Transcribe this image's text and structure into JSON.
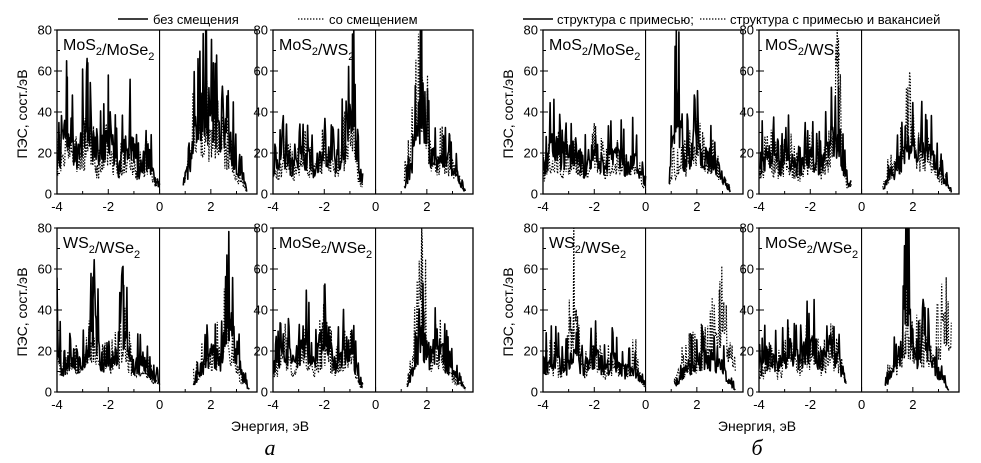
{
  "legend_left": {
    "solid": "без смещения",
    "dotted": "со смещением"
  },
  "legend_right": {
    "solid": "структура с примесью;",
    "dotted": "структура с примесью и вакансией"
  },
  "ylabel": "ПЭС, сост./эВ",
  "xlabel": "Энергия, эВ",
  "subfig_a": "а",
  "subfig_b": "б",
  "chart_data": [
    {
      "type": "line",
      "group": "а",
      "title": "MoS2/MoSe2",
      "xlim": [
        -4,
        3.8
      ],
      "ylim": [
        0,
        80
      ],
      "xticks": [
        "-4",
        "-2",
        "0",
        "2"
      ],
      "yticks": [
        "0",
        "20",
        "40",
        "60",
        "80"
      ],
      "gap": [
        0,
        0.9
      ],
      "series": [
        {
          "name": "без смещения",
          "style": "solid",
          "x": [
            -4.0,
            -3.6,
            -3.2,
            -2.8,
            -2.4,
            -2.0,
            -1.6,
            -1.2,
            -0.8,
            -0.4,
            -0.2,
            0.9,
            1.2,
            1.5,
            1.8,
            2.1,
            2.4,
            2.7,
            3.0,
            3.3,
            3.4
          ],
          "y": [
            24,
            57,
            30,
            64,
            25,
            58,
            22,
            48,
            20,
            34,
            10,
            8,
            26,
            66,
            80,
            64,
            45,
            48,
            26,
            12,
            2
          ]
        },
        {
          "name": "со смещением",
          "style": "dotted",
          "x": [
            -4.0,
            -3.6,
            -3.2,
            -2.8,
            -2.4,
            -2.0,
            -1.6,
            -1.2,
            -0.8,
            -0.4,
            -0.2,
            0.7,
            1.0,
            1.3,
            1.6,
            1.9,
            2.2,
            2.5,
            2.8,
            3.1,
            3.4
          ],
          "y": [
            18,
            40,
            22,
            36,
            18,
            32,
            18,
            28,
            16,
            24,
            8,
            4,
            20,
            40,
            46,
            42,
            38,
            36,
            24,
            12,
            2
          ]
        }
      ]
    },
    {
      "type": "line",
      "group": "а",
      "title": "MoS2/WS2",
      "xlim": [
        -4,
        3.8
      ],
      "ylim": [
        0,
        80
      ],
      "xticks": [
        "-4",
        "-2",
        "0",
        "2"
      ],
      "yticks": [
        "0",
        "20",
        "40",
        "60",
        "80"
      ],
      "gap": [
        -0.5,
        1.1
      ],
      "series": [
        {
          "name": "без смещения",
          "style": "solid",
          "x": [
            -4.0,
            -3.6,
            -3.2,
            -2.8,
            -2.4,
            -2.0,
            -1.6,
            -1.2,
            -0.9,
            -0.6,
            1.1,
            1.4,
            1.8,
            2.2,
            2.6,
            3.0,
            3.3,
            3.5
          ],
          "y": [
            20,
            30,
            24,
            34,
            22,
            38,
            24,
            40,
            78,
            10,
            6,
            22,
            80,
            28,
            30,
            24,
            10,
            2
          ]
        },
        {
          "name": "со смещением",
          "style": "dotted",
          "x": [
            -4.0,
            -3.6,
            -3.2,
            -2.8,
            -2.4,
            -2.0,
            -1.6,
            -1.2,
            -0.9,
            -0.6,
            0.8,
            1.2,
            1.8,
            2.2,
            2.6,
            3.0,
            3.3,
            3.5
          ],
          "y": [
            14,
            22,
            18,
            26,
            18,
            30,
            20,
            32,
            42,
            8,
            6,
            18,
            76,
            24,
            26,
            22,
            8,
            2
          ]
        }
      ]
    },
    {
      "type": "line",
      "group": "а",
      "title": "WS2/WSe2",
      "xlim": [
        -4,
        3.8
      ],
      "ylim": [
        0,
        80
      ],
      "xticks": [
        "-4",
        "-2",
        "0",
        "2"
      ],
      "yticks": [
        "0",
        "20",
        "40",
        "60",
        "80"
      ],
      "gap": [
        0,
        1.3
      ],
      "series": [
        {
          "name": "без смещения",
          "style": "solid",
          "x": [
            -4.0,
            -3.8,
            -3.4,
            -3.0,
            -2.6,
            -2.2,
            -1.8,
            -1.4,
            -1.0,
            -0.6,
            -0.2,
            1.3,
            1.6,
            2.0,
            2.4,
            2.7,
            3.0,
            3.3,
            3.5
          ],
          "y": [
            52,
            16,
            28,
            24,
            56,
            22,
            26,
            52,
            20,
            26,
            10,
            4,
            18,
            30,
            26,
            62,
            34,
            10,
            2
          ]
        },
        {
          "name": "со смещением",
          "style": "dotted",
          "x": [
            -4.0,
            -3.8,
            -3.4,
            -3.0,
            -2.6,
            -2.2,
            -1.8,
            -1.4,
            -1.0,
            -0.6,
            -0.2,
            1.1,
            1.5,
            1.9,
            2.3,
            2.6,
            2.9,
            3.2,
            3.5
          ],
          "y": [
            30,
            14,
            22,
            20,
            36,
            18,
            22,
            34,
            18,
            22,
            8,
            4,
            14,
            26,
            28,
            46,
            24,
            10,
            2
          ]
        }
      ]
    },
    {
      "type": "line",
      "group": "а",
      "title": "MoSe2/WSe2",
      "xlim": [
        -4,
        3.8
      ],
      "ylim": [
        0,
        80
      ],
      "xticks": [
        "-4",
        "-2",
        "0",
        "2"
      ],
      "yticks": [
        "0",
        "20",
        "40",
        "60",
        "80"
      ],
      "gap": [
        -0.5,
        1.2
      ],
      "series": [
        {
          "name": "без смещения",
          "style": "solid",
          "x": [
            -4.0,
            -3.6,
            -3.2,
            -2.8,
            -2.4,
            -2.0,
            -1.6,
            -1.2,
            -0.8,
            -0.6,
            1.2,
            1.5,
            1.8,
            2.1,
            2.4,
            2.7,
            3.0,
            3.3,
            3.5
          ],
          "y": [
            18,
            40,
            22,
            44,
            26,
            52,
            24,
            38,
            24,
            6,
            4,
            20,
            44,
            30,
            40,
            26,
            16,
            8,
            2
          ]
        },
        {
          "name": "со смещением",
          "style": "dotted",
          "x": [
            -4.0,
            -3.6,
            -3.2,
            -2.8,
            -2.4,
            -2.0,
            -1.6,
            -1.2,
            -0.8,
            -0.6,
            1.0,
            1.4,
            1.8,
            2.1,
            2.4,
            2.7,
            3.0,
            3.3,
            3.5
          ],
          "y": [
            14,
            28,
            18,
            30,
            20,
            34,
            20,
            30,
            20,
            4,
            2,
            16,
            80,
            26,
            32,
            22,
            12,
            6,
            2
          ]
        }
      ]
    },
    {
      "type": "line",
      "group": "б",
      "title": "MoS2/MoSe2",
      "xlim": [
        -4,
        3.8
      ],
      "ylim": [
        0,
        80
      ],
      "xticks": [
        "-4",
        "-2",
        "0",
        "2"
      ],
      "yticks": [
        "0",
        "20",
        "40",
        "60",
        "80"
      ],
      "gap": [
        0,
        0.9
      ],
      "series": [
        {
          "name": "структура с примесью;",
          "style": "solid",
          "x": [
            -4.0,
            -3.6,
            -3.2,
            -2.8,
            -2.4,
            -2.0,
            -1.6,
            -1.2,
            -0.8,
            -0.4,
            -0.1,
            0.9,
            1.2,
            1.5,
            1.9,
            2.3,
            2.7,
            3.1,
            3.3
          ],
          "y": [
            22,
            40,
            26,
            38,
            22,
            42,
            20,
            36,
            24,
            32,
            12,
            6,
            80,
            26,
            42,
            34,
            26,
            10,
            2
          ]
        },
        {
          "name": "структура с примесью и вакансией",
          "style": "dotted",
          "x": [
            -4.0,
            -3.6,
            -3.2,
            -2.8,
            -2.4,
            -2.0,
            -1.6,
            -1.2,
            -0.8,
            -0.4,
            -0.1,
            0.7,
            1.1,
            1.5,
            1.9,
            2.3,
            2.7,
            3.1,
            3.3
          ],
          "y": [
            16,
            28,
            20,
            28,
            18,
            30,
            18,
            26,
            18,
            24,
            8,
            4,
            18,
            22,
            32,
            28,
            22,
            8,
            2
          ]
        }
      ]
    },
    {
      "type": "line",
      "group": "б",
      "title": "MoS2/WS2",
      "xlim": [
        -4,
        3.8
      ],
      "ylim": [
        0,
        80
      ],
      "xticks": [
        "-4",
        "-2",
        "0",
        "2"
      ],
      "yticks": [
        "0",
        "20",
        "40",
        "60",
        "80"
      ],
      "gap": [
        -0.4,
        0.8
      ],
      "series": [
        {
          "name": "структура с примесью;",
          "style": "solid",
          "x": [
            -4.0,
            -3.6,
            -3.2,
            -2.8,
            -2.4,
            -2.0,
            -1.6,
            -1.2,
            -0.9,
            -0.6,
            0.8,
            1.2,
            1.6,
            1.9,
            2.3,
            2.7,
            3.0,
            3.3,
            3.5
          ],
          "y": [
            24,
            36,
            22,
            32,
            20,
            34,
            22,
            40,
            52,
            10,
            4,
            18,
            30,
            40,
            36,
            32,
            20,
            10,
            2
          ]
        },
        {
          "name": "структура с примесью и вакансией",
          "style": "dotted",
          "x": [
            -4.0,
            -3.6,
            -3.2,
            -2.8,
            -2.4,
            -2.0,
            -1.6,
            -1.2,
            -0.9,
            -0.6,
            0.7,
            1.1,
            1.5,
            1.8,
            2.2,
            2.6,
            3.0,
            3.3,
            3.5
          ],
          "y": [
            18,
            26,
            18,
            24,
            16,
            26,
            18,
            30,
            76,
            8,
            4,
            16,
            26,
            52,
            30,
            28,
            16,
            8,
            2
          ]
        }
      ]
    },
    {
      "type": "line",
      "group": "б",
      "title": "WS2/WSe2",
      "xlim": [
        -4,
        3.8
      ],
      "ylim": [
        0,
        80
      ],
      "xticks": [
        "-4",
        "-2",
        "0",
        "2"
      ],
      "yticks": [
        "0",
        "20",
        "40",
        "60",
        "80"
      ],
      "gap": [
        0,
        1.1
      ],
      "series": [
        {
          "name": "структура с примесью;",
          "style": "solid",
          "x": [
            -4.0,
            -3.6,
            -3.2,
            -2.8,
            -2.4,
            -2.0,
            -1.6,
            -1.2,
            -0.8,
            -0.4,
            -0.1,
            1.1,
            1.5,
            1.9,
            2.3,
            2.7,
            3.0,
            3.3,
            3.5
          ],
          "y": [
            22,
            28,
            20,
            26,
            22,
            30,
            20,
            26,
            18,
            20,
            8,
            4,
            18,
            24,
            28,
            24,
            20,
            8,
            2
          ]
        },
        {
          "name": "структура с примесью и вакансией",
          "style": "dotted",
          "x": [
            -4.0,
            -3.6,
            -3.2,
            -2.8,
            -2.4,
            -2.0,
            -1.6,
            -1.2,
            -0.8,
            -0.4,
            -0.1,
            0.9,
            1.3,
            1.7,
            2.1,
            2.5,
            2.9,
            3.2,
            3.5
          ],
          "y": [
            16,
            22,
            18,
            64,
            18,
            24,
            16,
            24,
            16,
            22,
            6,
            4,
            16,
            22,
            26,
            30,
            54,
            36,
            26
          ]
        }
      ]
    },
    {
      "type": "line",
      "group": "б",
      "title": "MoSe2/WSe2",
      "xlim": [
        -4,
        3.8
      ],
      "ylim": [
        0,
        80
      ],
      "xticks": [
        "-4",
        "-2",
        "0",
        "2"
      ],
      "yticks": [
        "0",
        "20",
        "40",
        "60",
        "80"
      ],
      "gap": [
        -0.6,
        0.9
      ],
      "series": [
        {
          "name": "структура с примесью;",
          "style": "solid",
          "x": [
            -4.0,
            -3.6,
            -3.2,
            -2.8,
            -2.4,
            -2.0,
            -1.6,
            -1.2,
            -0.9,
            -0.6,
            0.9,
            1.2,
            1.5,
            1.8,
            2.1,
            2.5,
            2.9,
            3.2,
            3.4
          ],
          "y": [
            20,
            30,
            22,
            34,
            24,
            42,
            26,
            36,
            28,
            8,
            4,
            18,
            30,
            80,
            32,
            36,
            20,
            10,
            2
          ]
        },
        {
          "name": "структура с примесью и вакансией",
          "style": "dotted",
          "x": [
            -4.0,
            -3.6,
            -3.2,
            -2.8,
            -2.4,
            -2.0,
            -1.6,
            -1.2,
            -0.9,
            -0.6,
            0.8,
            1.2,
            1.5,
            1.8,
            2.1,
            2.5,
            2.9,
            3.3,
            3.5
          ],
          "y": [
            14,
            22,
            16,
            26,
            20,
            30,
            22,
            28,
            24,
            6,
            4,
            16,
            26,
            44,
            30,
            34,
            32,
            56,
            30
          ]
        }
      ]
    }
  ]
}
